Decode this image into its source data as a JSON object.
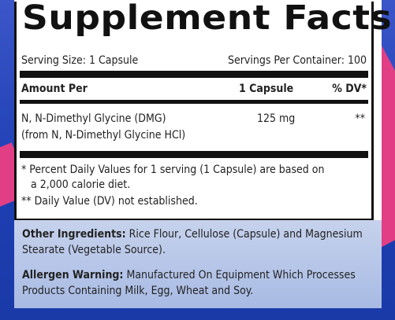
{
  "label": {
    "title": "Supplement Facts",
    "serving_size": "Serving Size: 1 Capsule",
    "servings_per_container": "Servings Per Container: 100",
    "header": {
      "amount_per": "Amount Per",
      "per_capsule": "1 Capsule",
      "dv": "% DV*"
    },
    "ingredients": [
      {
        "name": "N, N-Dimethyl Glycine (DMG)",
        "source": "(from N, N-Dimethyl Glycine HCl)",
        "amount": "125 mg",
        "dv": "**"
      }
    ],
    "footnotes": {
      "line1": "* Percent Daily Values for 1 serving (1 Capsule) are based on",
      "line2": "a 2,000 calorie diet.",
      "line3": "** Daily Value (DV) not established."
    }
  },
  "other": {
    "ingredients_label": "Other Ingredients:",
    "ingredients_text_1": "Rice Flour, Cellulose (Capsule) and Magnesium",
    "ingredients_text_2": "Stearate (Vegetable Source).",
    "allergen_label": "Allergen Warning:",
    "allergen_text_1": "Manufactured On Equipment Which Processes",
    "allergen_text_2": "Products Containing Milk, Egg, Wheat and Soy."
  },
  "colors": {
    "background_blue": "#1e3fb3",
    "accent_pink": "#e23e86",
    "lower_panel": "#b4c4e8"
  }
}
